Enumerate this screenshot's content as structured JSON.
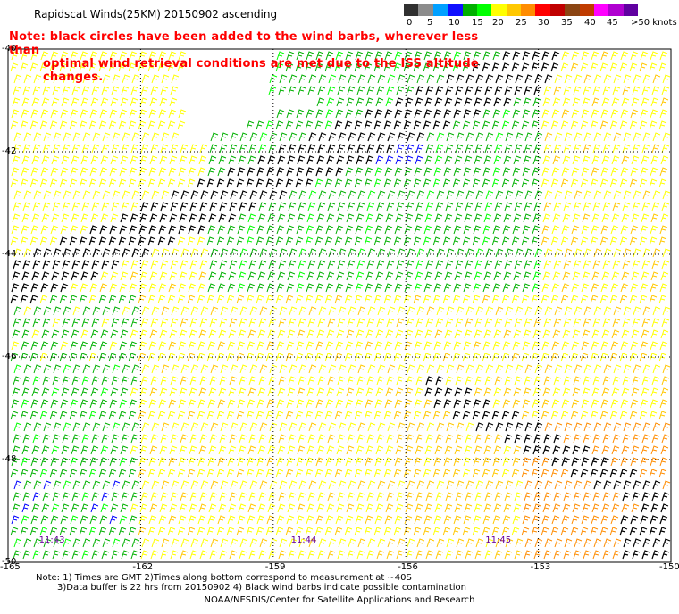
{
  "title": "Rapidscat Winds(25KM) 20150902 ascending",
  "note_line1": "Note: black circles have been added to the wind barbs, wherever less than",
  "note_line2": "optimal wind retrieval conditions are met due to the ISS altitude changes.",
  "legend": {
    "labels": [
      "0",
      "5",
      "10",
      "15",
      "20",
      "25",
      "30",
      "35",
      "40",
      "45",
      ">50 knots"
    ],
    "colors": [
      "#303030",
      "#8c8c8c",
      "#00a0ff",
      "#1010ff",
      "#00b000",
      "#00ff00",
      "#ffff00",
      "#ffc800",
      "#ff8c00",
      "#ff0000",
      "#c00000",
      "#8b4513",
      "#c03c00",
      "#ff00ff",
      "#b000d0",
      "#6000a0"
    ]
  },
  "lat_labels": [
    "-40",
    "-42",
    "-44",
    "-46",
    "-48",
    "-50"
  ],
  "lon_labels": [
    "-165",
    "-162",
    "-159",
    "-156",
    "-153",
    "-150"
  ],
  "time_labels": [
    "11:43",
    "11:44",
    "11:45"
  ],
  "footnote_line1": "Note: 1) Times are GMT 2)Times along bottom correspond to measurement at ~40S",
  "footnote_line2": "3)Data buffer is 22 hrs from 20150902 4) Black wind barbs indicate possible contamination",
  "credit": "NOAA/NESDIS/Center for Satellite Applications and Research",
  "map_data": {
    "lat_range": [
      -50,
      -40
    ],
    "lon_range": [
      -165,
      -150
    ],
    "grid": true,
    "barb_colors": {
      "contaminated": "#000000",
      "blue": "#0000ff",
      "green": "#00b000",
      "light_green": "#00ff00",
      "yellow": "#ffff00",
      "gold": "#ffc800",
      "orange": "#ff8c00"
    }
  }
}
